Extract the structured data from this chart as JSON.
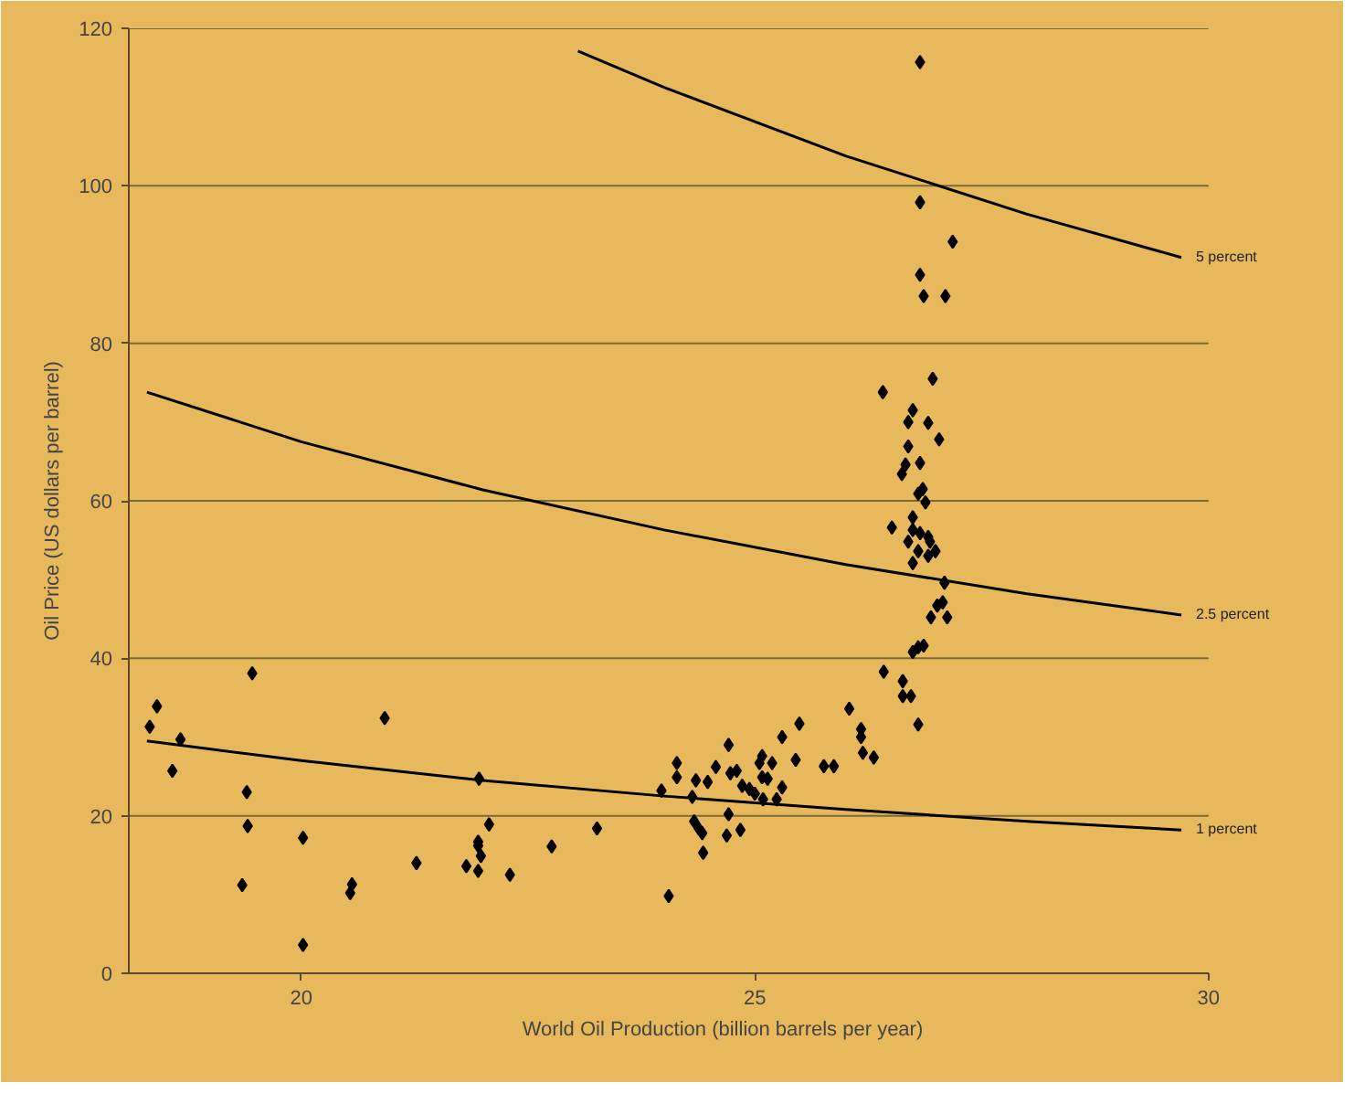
{
  "chart_data": {
    "type": "scatter",
    "xlabel": "World Oil Production (billion barrels per year)",
    "ylabel": "Oil Price (US dollars per barrel)",
    "xlim": [
      18.1,
      30
    ],
    "ylim": [
      0,
      120
    ],
    "xticks": [
      20,
      25,
      30
    ],
    "yticks": [
      0,
      20,
      40,
      60,
      80,
      100,
      120
    ],
    "grid": "y",
    "marker": "diamond",
    "series": [
      {
        "color": "#000000",
        "x": [
          18.33,
          18.41,
          18.67,
          18.58,
          19.46,
          19.4,
          19.41,
          19.35,
          20.02,
          20.02,
          20.56,
          20.54,
          20.92,
          21.27,
          21.82,
          21.95,
          21.96,
          21.95,
          21.95,
          21.98,
          22.07,
          22.3,
          22.76,
          23.26,
          23.97,
          24.05,
          24.14,
          24.14,
          24.31,
          24.35,
          24.48,
          24.57,
          24.33,
          24.38,
          24.42,
          24.43,
          24.71,
          24.73,
          24.8,
          24.71,
          24.69,
          24.84,
          24.86,
          24.94,
          25.0,
          25.05,
          25.08,
          25.08,
          25.14,
          25.19,
          25.09,
          25.24,
          25.3,
          25.3,
          25.45,
          25.49,
          25.76,
          25.87,
          26.04,
          26.17,
          26.17,
          26.19,
          26.31,
          26.42,
          26.63,
          26.63,
          26.72,
          26.8,
          26.74,
          26.8,
          26.86,
          26.94,
          27.01,
          27.07,
          27.12,
          27.09,
          26.74,
          26.8,
          26.91,
          26.99,
          26.69,
          26.93,
          26.74,
          26.82,
          26.51,
          26.82,
          26.82,
          27.18,
          26.82,
          26.86,
          27.1,
          26.96,
          26.41,
          26.74,
          26.69,
          26.91,
          27.03,
          26.69,
          26.66,
          26.82,
          26.62,
          26.8,
          26.85,
          26.88,
          26.74,
          26.91
        ],
        "values": [
          31.3,
          33.9,
          29.7,
          25.7,
          38.1,
          23.0,
          18.7,
          11.2,
          17.2,
          3.6,
          11.3,
          10.2,
          32.4,
          14.0,
          13.6,
          13.0,
          24.7,
          16.7,
          16.2,
          14.9,
          18.9,
          12.5,
          16.1,
          18.4,
          23.2,
          9.8,
          26.7,
          24.9,
          22.4,
          24.5,
          24.3,
          26.2,
          19.3,
          18.4,
          17.8,
          15.3,
          29.0,
          25.4,
          25.7,
          20.2,
          17.5,
          18.2,
          23.8,
          23.4,
          22.8,
          26.7,
          27.6,
          24.9,
          24.7,
          26.7,
          22.1,
          22.1,
          23.6,
          30.0,
          27.1,
          31.7,
          26.3,
          26.3,
          33.6,
          31.0,
          30.0,
          28.0,
          27.4,
          38.3,
          37.1,
          35.2,
          35.2,
          31.6,
          40.8,
          41.4,
          41.6,
          45.2,
          46.7,
          47.1,
          45.2,
          49.6,
          52.1,
          53.6,
          53.0,
          53.6,
          54.8,
          54.8,
          56.3,
          55.9,
          56.6,
          115.7,
          97.9,
          92.9,
          88.7,
          86.0,
          86.0,
          75.5,
          73.8,
          71.5,
          70.0,
          69.9,
          67.8,
          66.9,
          64.6,
          64.8,
          63.4,
          60.9,
          61.5,
          59.8,
          57.9,
          55.4
        ]
      },
      {
        "type": "line",
        "name": "5 percent",
        "color": "#000000",
        "marker": "none",
        "x": [
          23.05,
          24,
          26,
          28,
          29.7
        ],
        "values": [
          117.1,
          112.5,
          103.8,
          96.4,
          90.9
        ]
      },
      {
        "type": "line",
        "name": "2.5 percent",
        "color": "#000000",
        "marker": "none",
        "x": [
          18.3,
          20,
          22,
          24,
          26,
          28,
          29.7
        ],
        "values": [
          73.8,
          67.5,
          61.4,
          56.3,
          51.9,
          48.2,
          45.5
        ]
      },
      {
        "type": "line",
        "name": "1 percent",
        "color": "#000000",
        "marker": "none",
        "x": [
          18.3,
          20,
          22,
          24,
          26,
          28,
          29.7
        ],
        "values": [
          29.5,
          27.0,
          24.5,
          22.5,
          20.8,
          19.3,
          18.2
        ]
      }
    ]
  }
}
